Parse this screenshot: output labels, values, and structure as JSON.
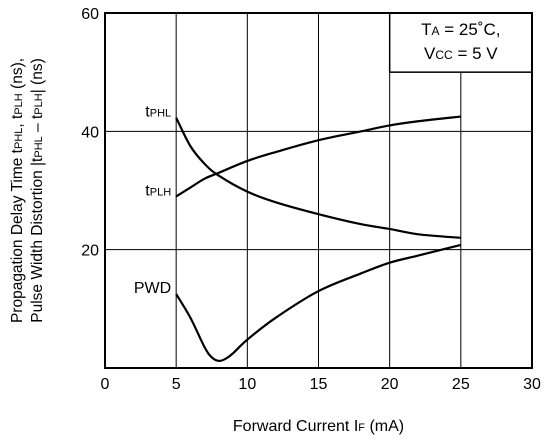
{
  "chart_data": {
    "type": "line",
    "title": "",
    "xlabel": {
      "main": "Forward Current  I",
      "sub": "F",
      "unit": " (mA)"
    },
    "ylabel": {
      "line1": [
        {
          "t": "Propagation Delay Time  t",
          "sub": false
        },
        {
          "t": "PHL",
          "sub": true
        },
        {
          "t": ", t",
          "sub": false
        },
        {
          "t": "PLH",
          "sub": true
        },
        {
          "t": " (ns),",
          "sub": false
        }
      ],
      "line2": [
        {
          "t": "Pulse Width Distortion |t",
          "sub": false
        },
        {
          "t": "PHL",
          "sub": true
        },
        {
          "t": " – t",
          "sub": false
        },
        {
          "t": "PLH",
          "sub": true
        },
        {
          "t": "| (ns)",
          "sub": false
        }
      ]
    },
    "xlim": [
      0,
      30
    ],
    "ylim": [
      0,
      60
    ],
    "xticks": [
      0,
      5,
      10,
      15,
      20,
      25,
      30
    ],
    "yticks": [
      20,
      40,
      60
    ],
    "grid": true,
    "annotation": {
      "line1": {
        "main": "T",
        "sub": "A",
        "rest": " = 25˚C,"
      },
      "line2": {
        "main": "V",
        "sub": "CC",
        "rest": " = 5 V"
      }
    },
    "series": [
      {
        "name": "tPHL",
        "label_main": "t",
        "label_sub": "PHL",
        "x": [
          5,
          6,
          7,
          8,
          10,
          12,
          15,
          18,
          20,
          22,
          25
        ],
        "y": [
          42.3,
          37.5,
          34.5,
          32.5,
          29.8,
          28.0,
          26.0,
          24.3,
          23.5,
          22.6,
          22.0
        ]
      },
      {
        "name": "tPLH",
        "label_main": "t",
        "label_sub": "PLH",
        "x": [
          5,
          6,
          7,
          8,
          10,
          12,
          15,
          18,
          20,
          22,
          25
        ],
        "y": [
          29.0,
          30.5,
          32.0,
          33.0,
          35.0,
          36.5,
          38.5,
          40.0,
          41.0,
          41.7,
          42.5
        ]
      },
      {
        "name": "PWD",
        "label_main": "PWD",
        "label_sub": "",
        "x": [
          5,
          6,
          7,
          7.5,
          8,
          8.5,
          9,
          10,
          12,
          15,
          18,
          20,
          22,
          25
        ],
        "y": [
          12.5,
          8.5,
          3.5,
          1.8,
          1.2,
          1.6,
          2.5,
          4.8,
          8.5,
          13.0,
          16.0,
          17.8,
          19.0,
          20.8
        ]
      }
    ]
  }
}
